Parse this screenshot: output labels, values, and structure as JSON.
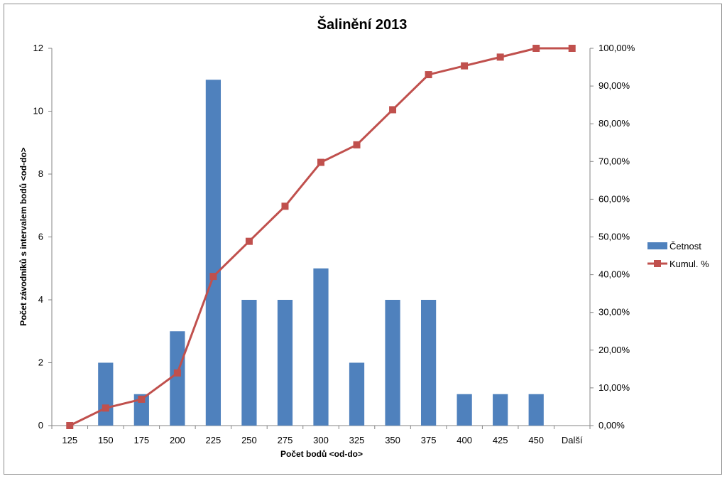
{
  "chart_data": {
    "type": "bar",
    "title": "Šalinění 2013",
    "xlabel": "Počet bodů <od-do>",
    "ylabel": "Počet závodníků s intervalem bodů <od-do>",
    "categories": [
      "125",
      "150",
      "175",
      "200",
      "225",
      "250",
      "275",
      "300",
      "325",
      "350",
      "375",
      "400",
      "425",
      "450",
      "Další"
    ],
    "ylim": [
      0,
      12
    ],
    "y_ticks": [
      "0",
      "2",
      "4",
      "6",
      "8",
      "10",
      "12"
    ],
    "y2lim": [
      0,
      1
    ],
    "y2_ticks": [
      "0,00%",
      "10,00%",
      "20,00%",
      "30,00%",
      "40,00%",
      "50,00%",
      "60,00%",
      "70,00%",
      "80,00%",
      "90,00%",
      "100,00%"
    ],
    "grid": false,
    "legend_position": "right",
    "series": [
      {
        "name": "Četnost",
        "type": "bar",
        "axis": "left",
        "color": "#4f81bd",
        "values": [
          0,
          2,
          1,
          3,
          11,
          4,
          4,
          5,
          2,
          4,
          4,
          1,
          1,
          1,
          0
        ]
      },
      {
        "name": "Kumul. %",
        "type": "line",
        "axis": "right",
        "color": "#c0504d",
        "marker": "square",
        "values": [
          0.0,
          0.0465,
          0.0698,
          0.1395,
          0.3953,
          0.4884,
          0.5814,
          0.6977,
          0.7442,
          0.8372,
          0.9302,
          0.9535,
          0.9767,
          1.0,
          1.0
        ]
      }
    ]
  }
}
